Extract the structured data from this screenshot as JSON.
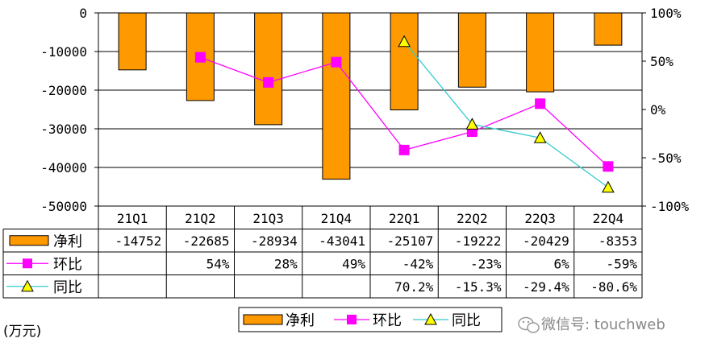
{
  "chart_data": {
    "type": "bar",
    "categories": [
      "21Q1",
      "21Q2",
      "21Q3",
      "21Q4",
      "22Q1",
      "22Q2",
      "22Q3",
      "22Q4"
    ],
    "series": [
      {
        "name": "净利",
        "type": "bar",
        "axis": "left",
        "color": "#ff9900",
        "values": [
          -14752,
          -22685,
          -28934,
          -43041,
          -25107,
          -19222,
          -20429,
          -8353
        ],
        "labels": [
          "-14752",
          "-22685",
          "-28934",
          "-43041",
          "-25107",
          "-19222",
          "-20429",
          "-8353"
        ]
      },
      {
        "name": "环比",
        "type": "line",
        "axis": "right",
        "color": "#ff00ff",
        "marker": "square",
        "values": [
          null,
          54,
          28,
          49,
          -42,
          -23,
          6,
          -59
        ],
        "labels": [
          "",
          "54%",
          "28%",
          "49%",
          "-42%",
          "-23%",
          "6%",
          "-59%"
        ]
      },
      {
        "name": "同比",
        "type": "line",
        "axis": "right",
        "color": "#33cccc",
        "marker": "triangle",
        "marker_color": "#ffff00",
        "values": [
          null,
          null,
          null,
          null,
          70.2,
          -15.3,
          -29.4,
          -80.6
        ],
        "labels": [
          "",
          "",
          "",
          "",
          "70.2%",
          "-15.3%",
          "-29.4%",
          "-80.6%"
        ]
      }
    ],
    "y_left": {
      "lim": [
        -50000,
        0
      ],
      "ticks": [
        "0",
        "-10000",
        "-20000",
        "-30000",
        "-40000",
        "-50000"
      ]
    },
    "y_right": {
      "lim": [
        -100,
        100
      ],
      "ticks": [
        "100%",
        "50%",
        "0%",
        "-50%",
        "-100%"
      ]
    },
    "legend": {
      "items": [
        "净利",
        "环比",
        "同比"
      ],
      "placement": "bottom"
    },
    "unit_note": "(万元)",
    "grid": true
  },
  "watermark": "微信号: touchweb"
}
